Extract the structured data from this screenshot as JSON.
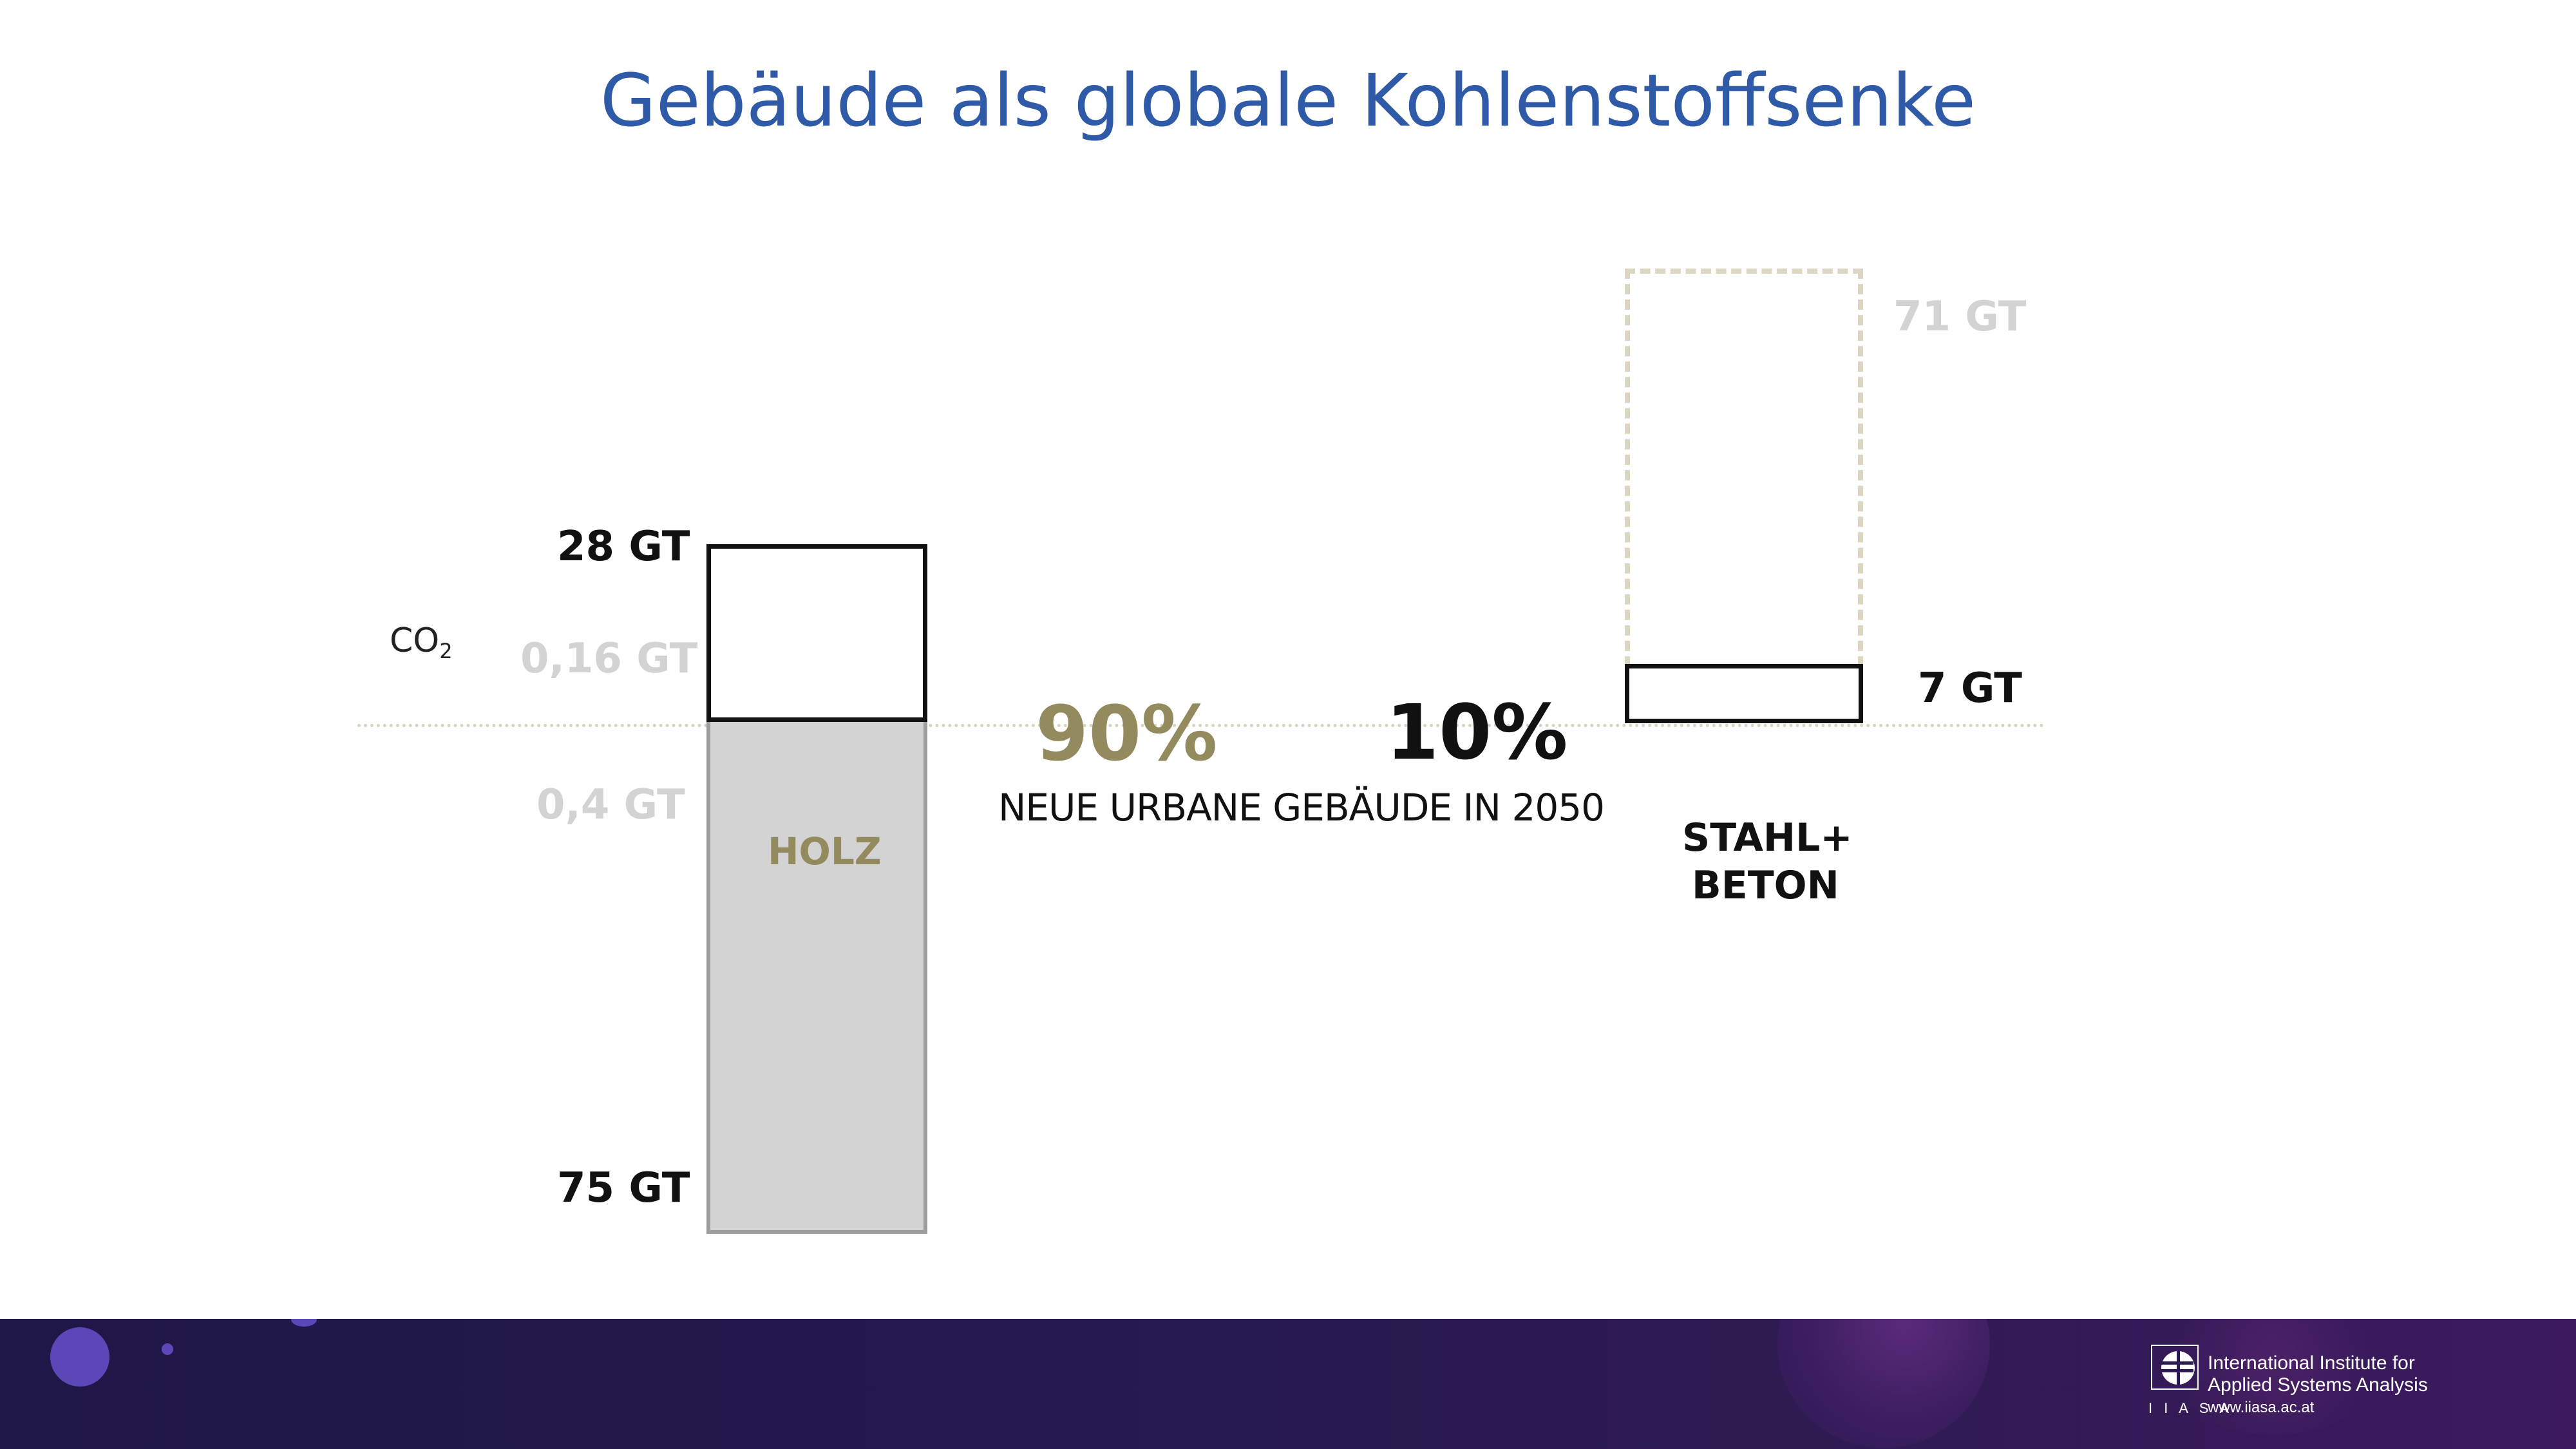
{
  "title": "Gebäude als globale Kohlenstoffsenke",
  "co2_label": "CO",
  "co2_sub": "2",
  "holz": {
    "label": "HOLZ",
    "top_value": "28 GT",
    "bottom_value": "75 GT",
    "upper_light": "0,16 GT",
    "lower_light": "0,4 GT",
    "share": "90%"
  },
  "stahl_beton": {
    "label_line1": "STAHL+",
    "label_line2": "BETON",
    "value": "7 GT",
    "potential_value": "71 GT",
    "share": "10%"
  },
  "subtitle": "NEUE URBANE GEBÄUDE IN 2050",
  "colors": {
    "title": "#2e5aa7",
    "holz_accent": "#938a5e",
    "light_gray": "#d3d3d3",
    "beige": "#d9d4b8",
    "footer_dark": "#1f1747"
  },
  "logo": {
    "line1": "International Institute for",
    "line2": "Applied Systems Analysis",
    "abbr": "I I A S A",
    "url": "www.iiasa.ac.at",
    "icon": "iiasa-globe-icon"
  }
}
